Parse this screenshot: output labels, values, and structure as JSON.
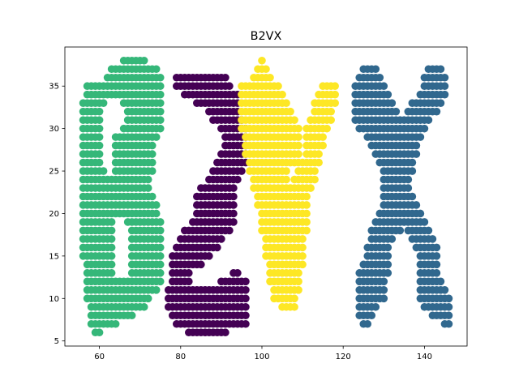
{
  "chart_data": {
    "type": "scatter",
    "title": "B2VX",
    "xlabel": "",
    "ylabel": "",
    "xlim": [
      51.5,
      150.5
    ],
    "ylim": [
      4.4,
      39.6
    ],
    "xticks": [
      60,
      80,
      100,
      120,
      140
    ],
    "yticks": [
      5,
      10,
      15,
      20,
      25,
      30,
      35
    ],
    "xtick_labels": [
      "60",
      "80",
      "100",
      "120",
      "140"
    ],
    "ytick_labels": [
      "5",
      "10",
      "15",
      "20",
      "25",
      "30",
      "35"
    ],
    "grid": false,
    "legend": "none",
    "marker": "filled circle",
    "series": [
      {
        "color": "#35b779",
        "rows": [
          [
            38,
            66,
            71
          ],
          [
            37,
            63,
            74
          ],
          [
            36,
            62,
            75
          ],
          [
            35,
            57,
            75
          ],
          [
            34,
            57,
            75
          ],
          [
            33,
            56,
            61
          ],
          [
            33,
            66,
            75
          ],
          [
            32,
            56,
            60
          ],
          [
            32,
            67,
            75
          ],
          [
            31,
            56,
            60
          ],
          [
            31,
            67,
            75
          ],
          [
            30,
            56,
            60
          ],
          [
            30,
            66,
            75
          ],
          [
            29,
            56,
            60
          ],
          [
            29,
            64,
            74
          ],
          [
            28,
            56,
            60
          ],
          [
            28,
            64,
            73
          ],
          [
            27,
            56,
            60
          ],
          [
            27,
            64,
            73
          ],
          [
            26,
            56,
            60
          ],
          [
            26,
            64,
            73
          ],
          [
            25,
            56,
            61
          ],
          [
            25,
            64,
            73
          ],
          [
            24,
            56,
            72
          ],
          [
            23,
            56,
            72
          ],
          [
            22,
            56,
            73
          ],
          [
            21,
            56,
            74
          ],
          [
            20,
            56,
            74
          ],
          [
            19,
            56,
            63
          ],
          [
            19,
            67,
            75
          ],
          [
            18,
            56,
            63
          ],
          [
            18,
            68,
            75
          ],
          [
            17,
            56,
            63
          ],
          [
            17,
            68,
            75
          ],
          [
            16,
            56,
            63
          ],
          [
            16,
            68,
            75
          ],
          [
            15,
            56,
            63
          ],
          [
            15,
            68,
            75
          ],
          [
            14,
            57,
            63
          ],
          [
            14,
            68,
            75
          ],
          [
            13,
            57,
            63
          ],
          [
            13,
            68,
            75
          ],
          [
            12,
            57,
            75
          ],
          [
            11,
            57,
            74
          ],
          [
            10,
            57,
            72
          ],
          [
            9,
            58,
            71
          ],
          [
            8,
            58,
            68
          ],
          [
            7,
            58,
            64
          ],
          [
            6,
            59,
            60
          ]
        ]
      },
      {
        "color": "#440154",
        "rows": [
          [
            36,
            79,
            91
          ],
          [
            35,
            79,
            92
          ],
          [
            34,
            81,
            94
          ],
          [
            33,
            84,
            94
          ],
          [
            32,
            87,
            94
          ],
          [
            31,
            88,
            95
          ],
          [
            30,
            90,
            96
          ],
          [
            29,
            91,
            96
          ],
          [
            28,
            91,
            96
          ],
          [
            27,
            90,
            96
          ],
          [
            26,
            89,
            96
          ],
          [
            25,
            88,
            95
          ],
          [
            24,
            87,
            94
          ],
          [
            23,
            85,
            93
          ],
          [
            22,
            84,
            93
          ],
          [
            21,
            84,
            93
          ],
          [
            20,
            84,
            93
          ],
          [
            19,
            83,
            93
          ],
          [
            18,
            81,
            92
          ],
          [
            17,
            80,
            90
          ],
          [
            16,
            79,
            89
          ],
          [
            15,
            78,
            87
          ],
          [
            14,
            78,
            85
          ],
          [
            13,
            78,
            82
          ],
          [
            13,
            93,
            94
          ],
          [
            12,
            78,
            82
          ],
          [
            12,
            90,
            96
          ],
          [
            11,
            77,
            96
          ],
          [
            10,
            77,
            96
          ],
          [
            9,
            77,
            96
          ],
          [
            8,
            78,
            96
          ],
          [
            7,
            79,
            96
          ],
          [
            6,
            82,
            91
          ]
        ]
      },
      {
        "color": "#fde725",
        "rows": [
          [
            38,
            100,
            100
          ],
          [
            37,
            99,
            101
          ],
          [
            36,
            98,
            102
          ],
          [
            35,
            95,
            104
          ],
          [
            35,
            115,
            118
          ],
          [
            34,
            95,
            105
          ],
          [
            34,
            114,
            118
          ],
          [
            33,
            95,
            106
          ],
          [
            33,
            113,
            118
          ],
          [
            32,
            95,
            107
          ],
          [
            32,
            113,
            117
          ],
          [
            31,
            95,
            108
          ],
          [
            31,
            112,
            117
          ],
          [
            30,
            95,
            109
          ],
          [
            30,
            111,
            116
          ],
          [
            29,
            96,
            109
          ],
          [
            29,
            111,
            115
          ],
          [
            28,
            96,
            109
          ],
          [
            28,
            111,
            115
          ],
          [
            27,
            96,
            109
          ],
          [
            27,
            111,
            114
          ],
          [
            26,
            97,
            109
          ],
          [
            26,
            110,
            114
          ],
          [
            25,
            97,
            106
          ],
          [
            25,
            109,
            113
          ],
          [
            24,
            98,
            106
          ],
          [
            24,
            108,
            113
          ],
          [
            23,
            98,
            112
          ],
          [
            22,
            99,
            111
          ],
          [
            21,
            99,
            111
          ],
          [
            20,
            100,
            111
          ],
          [
            19,
            100,
            111
          ],
          [
            18,
            100,
            111
          ],
          [
            17,
            101,
            110
          ],
          [
            16,
            101,
            110
          ],
          [
            15,
            101,
            110
          ],
          [
            14,
            102,
            110
          ],
          [
            13,
            102,
            109
          ],
          [
            12,
            102,
            109
          ],
          [
            11,
            103,
            109
          ],
          [
            10,
            103,
            108
          ],
          [
            9,
            105,
            108
          ]
        ]
      },
      {
        "color": "#31688e",
        "rows": [
          [
            37,
            125,
            128
          ],
          [
            37,
            141,
            144
          ],
          [
            36,
            124,
            129
          ],
          [
            36,
            140,
            145
          ],
          [
            35,
            123,
            130
          ],
          [
            35,
            140,
            145
          ],
          [
            34,
            123,
            131
          ],
          [
            34,
            139,
            145
          ],
          [
            33,
            123,
            132
          ],
          [
            33,
            137,
            144
          ],
          [
            32,
            123,
            133
          ],
          [
            32,
            136,
            143
          ],
          [
            31,
            123,
            141
          ],
          [
            30,
            124,
            140
          ],
          [
            29,
            126,
            139
          ],
          [
            28,
            127,
            138
          ],
          [
            27,
            128,
            138
          ],
          [
            26,
            129,
            137
          ],
          [
            25,
            130,
            137
          ],
          [
            24,
            130,
            136
          ],
          [
            23,
            130,
            136
          ],
          [
            22,
            130,
            137
          ],
          [
            21,
            130,
            138
          ],
          [
            20,
            129,
            139
          ],
          [
            19,
            128,
            140
          ],
          [
            18,
            127,
            134
          ],
          [
            18,
            136,
            141
          ],
          [
            17,
            127,
            132
          ],
          [
            17,
            137,
            142
          ],
          [
            16,
            126,
            131
          ],
          [
            16,
            138,
            143
          ],
          [
            15,
            126,
            131
          ],
          [
            15,
            139,
            143
          ],
          [
            14,
            125,
            131
          ],
          [
            14,
            139,
            143
          ],
          [
            13,
            124,
            131
          ],
          [
            13,
            139,
            143
          ],
          [
            12,
            124,
            130
          ],
          [
            12,
            139,
            144
          ],
          [
            11,
            124,
            130
          ],
          [
            11,
            139,
            145
          ],
          [
            10,
            124,
            130
          ],
          [
            10,
            139,
            146
          ],
          [
            9,
            124,
            128
          ],
          [
            9,
            140,
            146
          ],
          [
            8,
            124,
            127
          ],
          [
            8,
            142,
            146
          ],
          [
            7,
            125,
            126
          ],
          [
            7,
            145,
            146
          ]
        ]
      }
    ]
  }
}
